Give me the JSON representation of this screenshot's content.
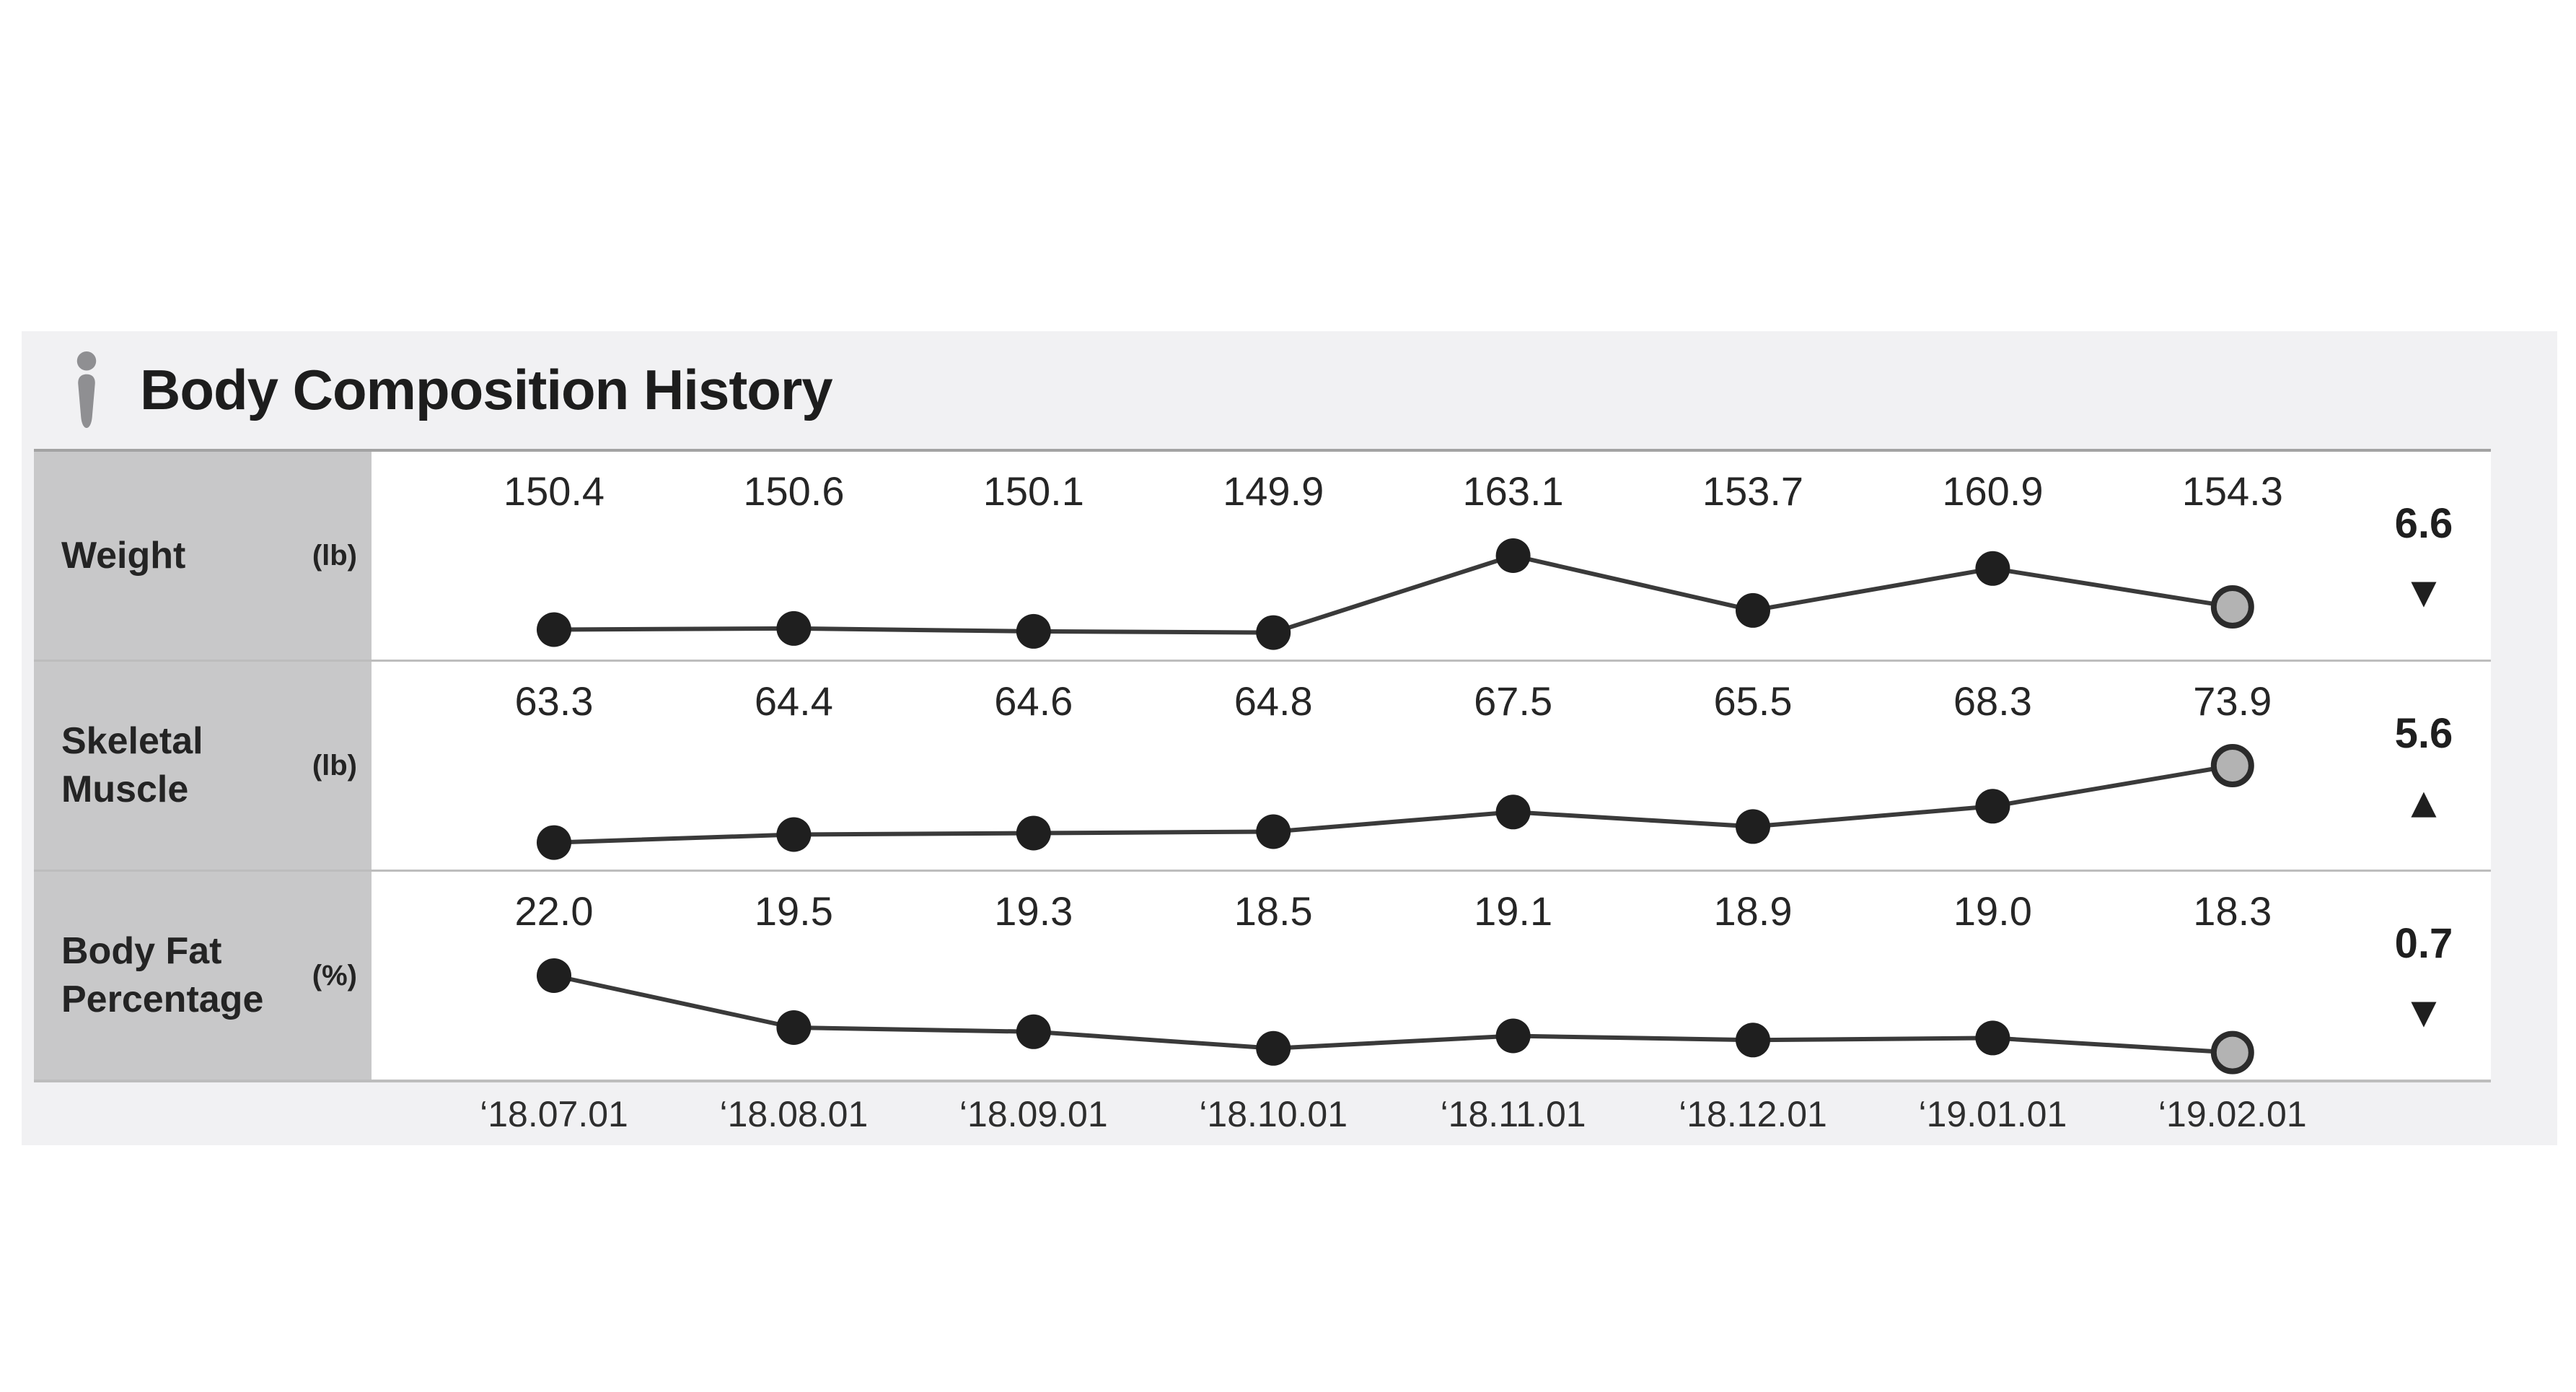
{
  "title": "Body Composition History",
  "colors": {
    "panel_bg": "#f1f1f3",
    "label_col_bg": "#c8c8c9",
    "row_bg": "#ffffff",
    "divider": "#bdbdbd",
    "top_border": "#a3a3a3",
    "text": "#242424",
    "line": "#3a3a3a",
    "dot": "#1f1f1f",
    "last_dot_fill": "#b3b3b3",
    "last_dot_stroke": "#2b2b2b",
    "icon": "#8f8f92"
  },
  "chart_data": {
    "type": "line",
    "title": "Body Composition History",
    "x": [
      "‘18.07.01",
      "‘18.08.01",
      "‘18.09.01",
      "‘18.10.01",
      "‘18.11.01",
      "‘18.12.01",
      "‘19.01.01",
      "‘19.02.01"
    ],
    "legend_position": "none",
    "grid": false,
    "series": [
      {
        "name": "Weight",
        "unit": "(lb)",
        "values": [
          150.4,
          150.6,
          150.1,
          149.9,
          163.1,
          153.7,
          160.9,
          154.3
        ],
        "values_display": [
          "150.4",
          "150.6",
          "150.1",
          "149.9",
          "163.1",
          "153.7",
          "160.9",
          "154.3"
        ],
        "change": {
          "value": "6.6",
          "direction": "down",
          "arrow": "▼"
        }
      },
      {
        "name": "Skeletal Muscle",
        "unit": "(lb)",
        "values": [
          63.3,
          64.4,
          64.6,
          64.8,
          67.5,
          65.5,
          68.3,
          73.9
        ],
        "values_display": [
          "63.3",
          "64.4",
          "64.6",
          "64.8",
          "67.5",
          "65.5",
          "68.3",
          "73.9"
        ],
        "change": {
          "value": "5.6",
          "direction": "up",
          "arrow": "▲"
        }
      },
      {
        "name": "Body Fat Percentage",
        "unit": "(%)",
        "values": [
          22.0,
          19.5,
          19.3,
          18.5,
          19.1,
          18.9,
          19.0,
          18.3
        ],
        "values_display": [
          "22.0",
          "19.5",
          "19.3",
          "18.5",
          "19.1",
          "18.9",
          "19.0",
          "18.3"
        ],
        "change": {
          "value": "0.7",
          "direction": "down",
          "arrow": "▼"
        }
      }
    ]
  }
}
